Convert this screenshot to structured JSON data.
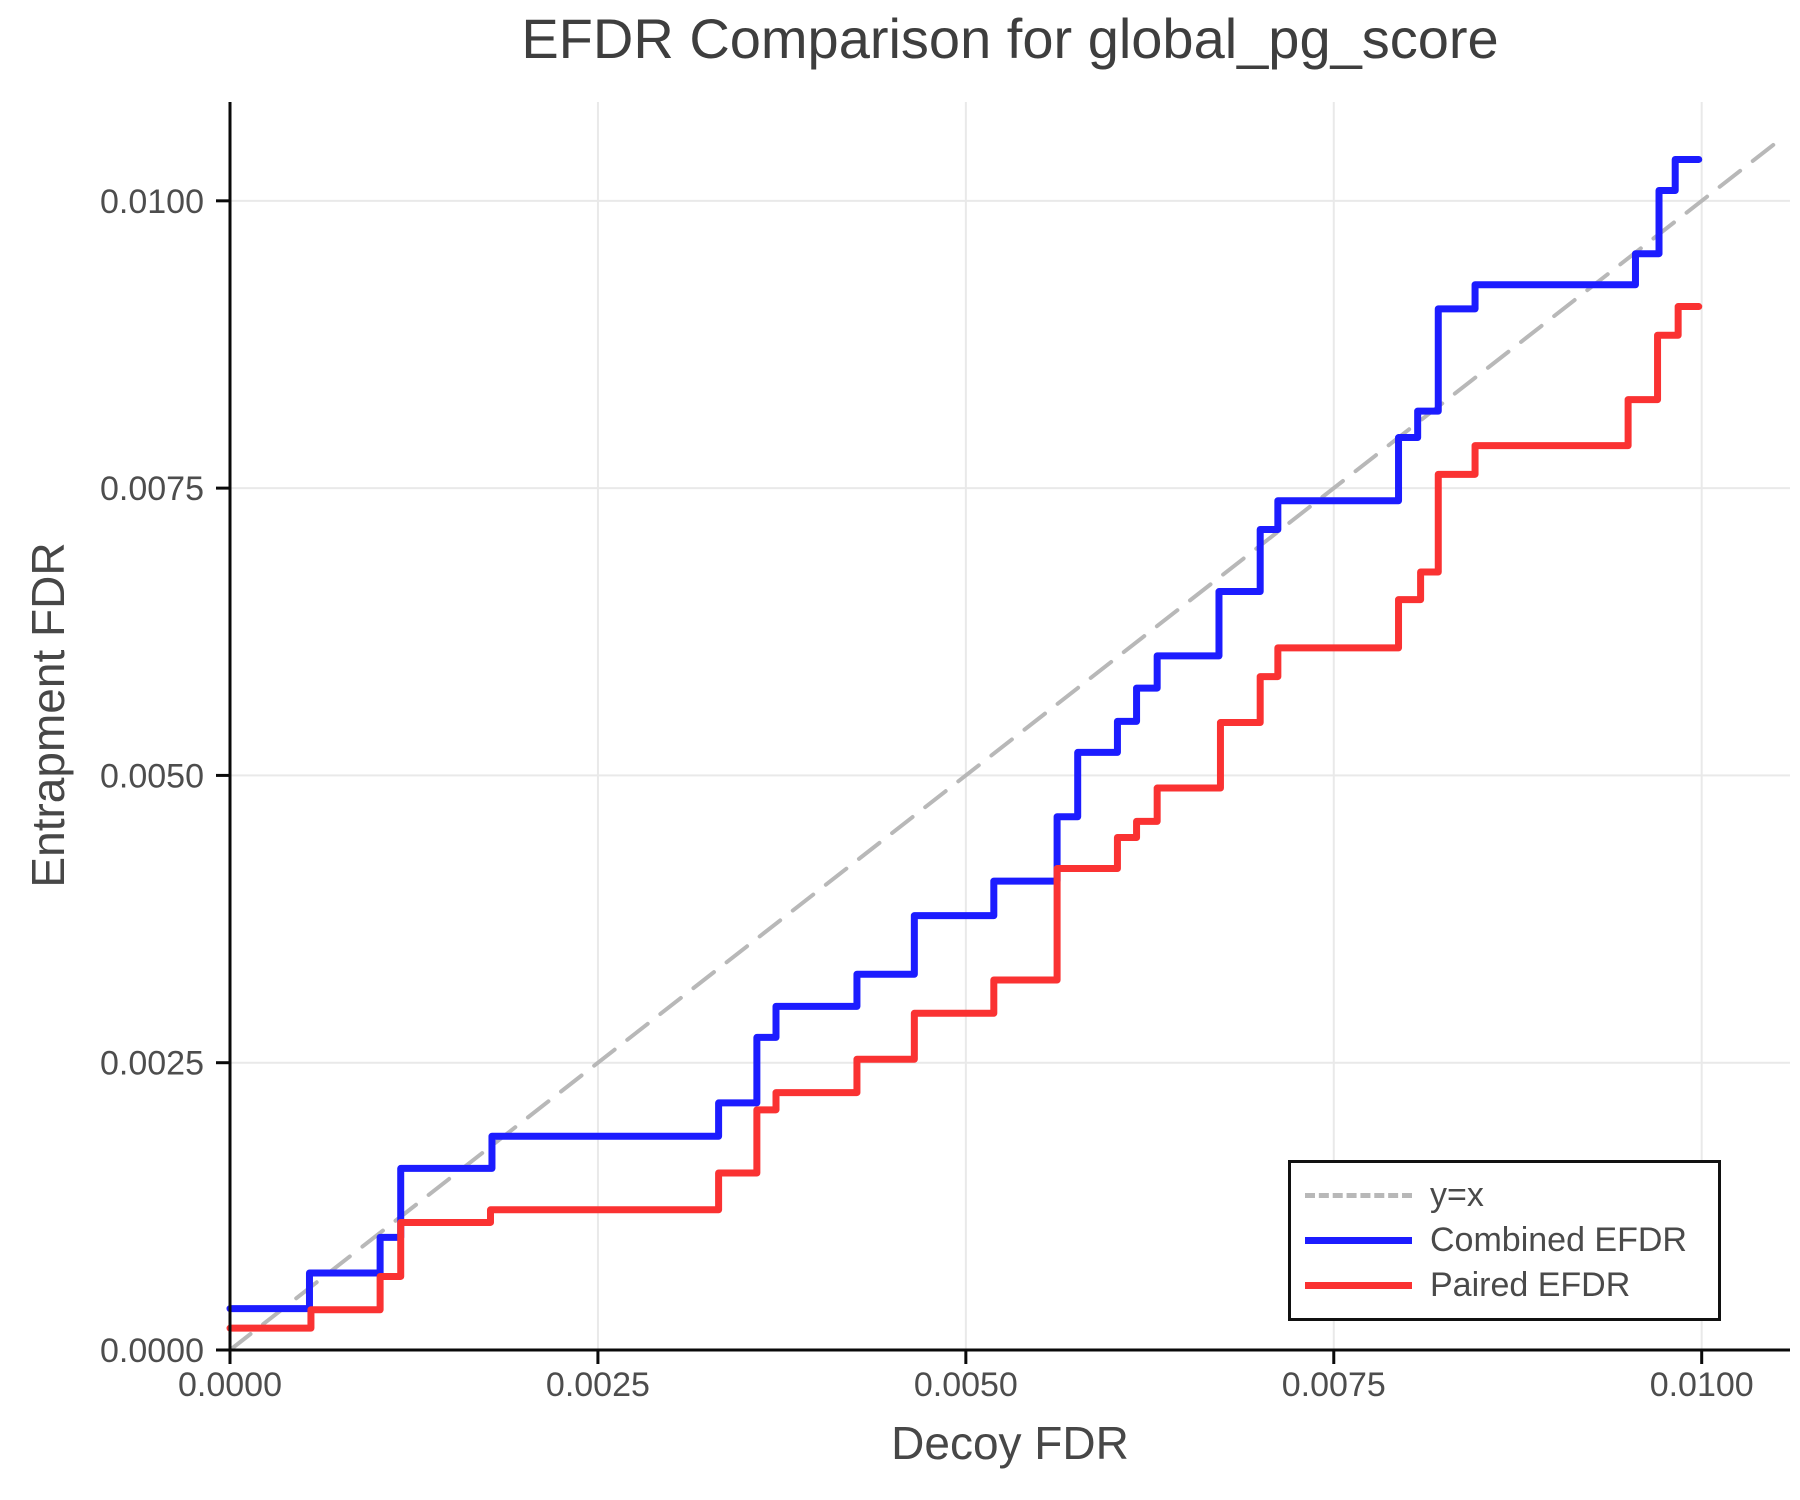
{
  "title": "EFDR Comparison for global_pg_score",
  "colors": {
    "combined": "#1c1cff",
    "paired": "#fa3232",
    "identity": "#b8b8b8",
    "grid": "#e9e9e9",
    "spine": "#0a0a0a",
    "tick_label": "#4d4d4d",
    "title_text": "#3e3e3e",
    "axis_label_text": "#474747"
  },
  "chart_data": {
    "type": "line",
    "title": "EFDR Comparison for global_pg_score",
    "xlabel": "Decoy FDR",
    "ylabel": "Entrapment FDR",
    "xlim": [
      0,
      0.0106
    ],
    "ylim": [
      0,
      0.01086
    ],
    "grid": true,
    "legend_position": "lower right",
    "x_ticks": [
      0.0,
      0.0025,
      0.005,
      0.0075,
      0.01
    ],
    "x_tick_labels": [
      "0.0000",
      "0.0025",
      "0.0050",
      "0.0075",
      "0.0100"
    ],
    "y_ticks": [
      0.0,
      0.0025,
      0.005,
      0.0075,
      0.01
    ],
    "y_tick_labels": [
      "0.0000",
      "0.0025",
      "0.0050",
      "0.0075",
      "0.0100"
    ],
    "series": [
      {
        "name": "y=x",
        "style": "dashed",
        "color": "#b8b8b8",
        "interpolation": "linear",
        "points": [
          [
            0,
            0
          ],
          [
            0.0105,
            0.0105
          ]
        ]
      },
      {
        "name": "Combined EFDR",
        "style": "solid",
        "color": "#1c1cff",
        "interpolation": "steps-post",
        "points": [
          [
            0.0,
            0.00036
          ],
          [
            0.00054,
            0.00067
          ],
          [
            0.00102,
            0.00098
          ],
          [
            0.00116,
            0.00158
          ],
          [
            0.00178,
            0.00186
          ],
          [
            0.00332,
            0.00215
          ],
          [
            0.00358,
            0.00272
          ],
          [
            0.00371,
            0.00299
          ],
          [
            0.00426,
            0.00327
          ],
          [
            0.00465,
            0.00378
          ],
          [
            0.00519,
            0.00408
          ],
          [
            0.00562,
            0.00464
          ],
          [
            0.00576,
            0.0052
          ],
          [
            0.00603,
            0.00547
          ],
          [
            0.00616,
            0.00576
          ],
          [
            0.0063,
            0.00604
          ],
          [
            0.00672,
            0.0066
          ],
          [
            0.007,
            0.00714
          ],
          [
            0.00712,
            0.00739
          ],
          [
            0.00794,
            0.00794
          ],
          [
            0.00807,
            0.00817
          ],
          [
            0.00821,
            0.00906
          ],
          [
            0.00846,
            0.00927
          ],
          [
            0.00955,
            0.00954
          ],
          [
            0.00971,
            0.01009
          ],
          [
            0.00982,
            0.01036
          ],
          [
            0.00998,
            0.01036
          ]
        ]
      },
      {
        "name": "Paired EFDR",
        "style": "solid",
        "color": "#fa3232",
        "interpolation": "steps-post",
        "points": [
          [
            0.0,
            0.00019
          ],
          [
            0.00055,
            0.00035
          ],
          [
            0.00102,
            0.00064
          ],
          [
            0.00116,
            0.00111
          ],
          [
            0.00177,
            0.00122
          ],
          [
            0.00332,
            0.00154
          ],
          [
            0.00358,
            0.00209
          ],
          [
            0.00371,
            0.00224
          ],
          [
            0.00426,
            0.00253
          ],
          [
            0.00465,
            0.00293
          ],
          [
            0.00519,
            0.00322
          ],
          [
            0.00562,
            0.00419
          ],
          [
            0.00603,
            0.00446
          ],
          [
            0.00616,
            0.0046
          ],
          [
            0.0063,
            0.00489
          ],
          [
            0.00673,
            0.00546
          ],
          [
            0.007,
            0.00586
          ],
          [
            0.00712,
            0.00611
          ],
          [
            0.00794,
            0.00653
          ],
          [
            0.00809,
            0.00677
          ],
          [
            0.00821,
            0.00762
          ],
          [
            0.00846,
            0.00787
          ],
          [
            0.0095,
            0.00827
          ],
          [
            0.0097,
            0.00883
          ],
          [
            0.00984,
            0.00908
          ],
          [
            0.00998,
            0.00908
          ]
        ]
      }
    ]
  },
  "legend": {
    "entries": [
      {
        "label": "y=x"
      },
      {
        "label": "Combined EFDR"
      },
      {
        "label": "Paired EFDR"
      }
    ]
  }
}
